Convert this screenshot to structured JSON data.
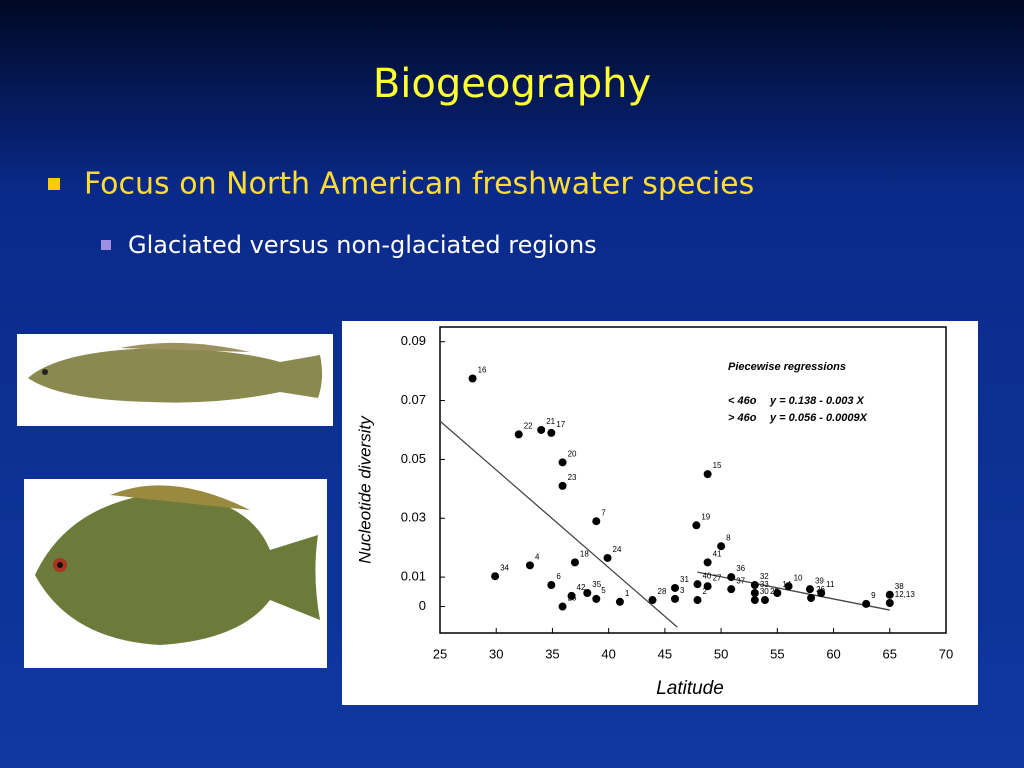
{
  "title": "Biogeography",
  "bullet": "Focus on North American freshwater species",
  "sub_bullet": "Glaciated versus non-glaciated regions",
  "chart_data": {
    "type": "scatter",
    "xlabel": "Latitude",
    "ylabel": "Nucleotide diversity",
    "annotations": [
      "Piecewise regressions",
      "< 46o",
      "y = 0.138 - 0.003 X",
      "> 46o",
      "y = 0.056 - 0.0009X"
    ],
    "xlim": [
      25,
      70
    ],
    "ylim": [
      -0.009,
      0.095
    ],
    "xticks": [
      25,
      30,
      35,
      40,
      45,
      50,
      55,
      60,
      65,
      70
    ],
    "yticks": [
      0,
      0.01,
      0.03,
      0.05,
      0.07,
      0.09
    ],
    "series": [
      {
        "color": "#000000",
        "labels": [
          "16",
          "22",
          "21",
          "17",
          "20",
          "23",
          "7",
          "24",
          "18",
          "34",
          "4",
          "6",
          "42",
          "25",
          "35",
          "5",
          "1",
          "28",
          "31",
          "3",
          "40",
          "2",
          "15",
          "19",
          "8",
          "41",
          "36",
          "27",
          "37",
          "32",
          "33",
          "30",
          "29",
          "14",
          "10",
          "39",
          "26",
          "11",
          "9",
          "38",
          "12,13"
        ],
        "x": [
          27.9,
          32.0,
          34.0,
          34.9,
          35.9,
          35.9,
          38.9,
          39.9,
          37.0,
          29.9,
          33.0,
          34.9,
          36.7,
          35.9,
          38.1,
          38.9,
          41.0,
          43.9,
          45.9,
          45.9,
          47.9,
          47.9,
          48.8,
          47.8,
          50.0,
          48.8,
          50.9,
          48.8,
          50.9,
          53.0,
          53.0,
          53.0,
          53.9,
          55.0,
          56.0,
          57.9,
          58.0,
          58.9,
          62.9,
          65.0,
          65.0
        ],
        "values": [
          0.0775,
          0.0585,
          0.06,
          0.059,
          0.049,
          0.041,
          0.029,
          0.0165,
          0.015,
          0.0103,
          0.014,
          0.0073,
          0.0036,
          0.0,
          0.0046,
          0.0026,
          0.0016,
          0.0022,
          0.0063,
          0.0026,
          0.0076,
          0.0022,
          0.045,
          0.0276,
          0.0205,
          0.015,
          0.01,
          0.0069,
          0.0059,
          0.0073,
          0.0046,
          0.0022,
          0.0022,
          0.0046,
          0.0069,
          0.0059,
          0.0029,
          0.0046,
          0.0009,
          0.004,
          0.0012
        ]
      }
    ],
    "fit_lines": [
      {
        "x": [
          25,
          46.1
        ],
        "values": [
          0.063,
          -0.007
        ]
      },
      {
        "x": [
          47.9,
          65
        ],
        "values": [
          0.0117,
          -0.0012
        ]
      }
    ]
  }
}
